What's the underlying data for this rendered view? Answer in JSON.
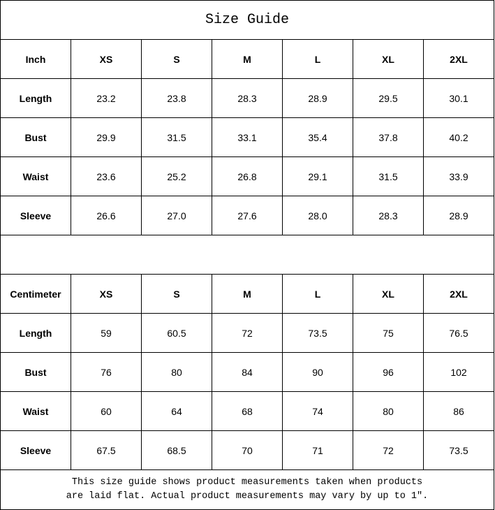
{
  "title": "Size Guide",
  "tables": [
    {
      "unit": "Inch",
      "sizes": [
        "XS",
        "S",
        "M",
        "L",
        "XL",
        "2XL"
      ],
      "rows": [
        {
          "label": "Length",
          "values": [
            "23.2",
            "23.8",
            "28.3",
            "28.9",
            "29.5",
            "30.1"
          ]
        },
        {
          "label": "Bust",
          "values": [
            "29.9",
            "31.5",
            "33.1",
            "35.4",
            "37.8",
            "40.2"
          ]
        },
        {
          "label": "Waist",
          "values": [
            "23.6",
            "25.2",
            "26.8",
            "29.1",
            "31.5",
            "33.9"
          ]
        },
        {
          "label": "Sleeve",
          "values": [
            "26.6",
            "27.0",
            "27.6",
            "28.0",
            "28.3",
            "28.9"
          ]
        }
      ]
    },
    {
      "unit": "Centimeter",
      "sizes": [
        "XS",
        "S",
        "M",
        "L",
        "XL",
        "2XL"
      ],
      "rows": [
        {
          "label": "Length",
          "values": [
            "59",
            "60.5",
            "72",
            "73.5",
            "75",
            "76.5"
          ]
        },
        {
          "label": "Bust",
          "values": [
            "76",
            "80",
            "84",
            "90",
            "96",
            "102"
          ]
        },
        {
          "label": "Waist",
          "values": [
            "60",
            "64",
            "68",
            "74",
            "80",
            "86"
          ]
        },
        {
          "label": "Sleeve",
          "values": [
            "67.5",
            "68.5",
            "70",
            "71",
            "72",
            "73.5"
          ]
        }
      ]
    }
  ],
  "note": {
    "line1": "This size guide shows product measurements taken when products",
    "line2": "are laid flat. Actual product measurements may vary by up to 1″."
  }
}
